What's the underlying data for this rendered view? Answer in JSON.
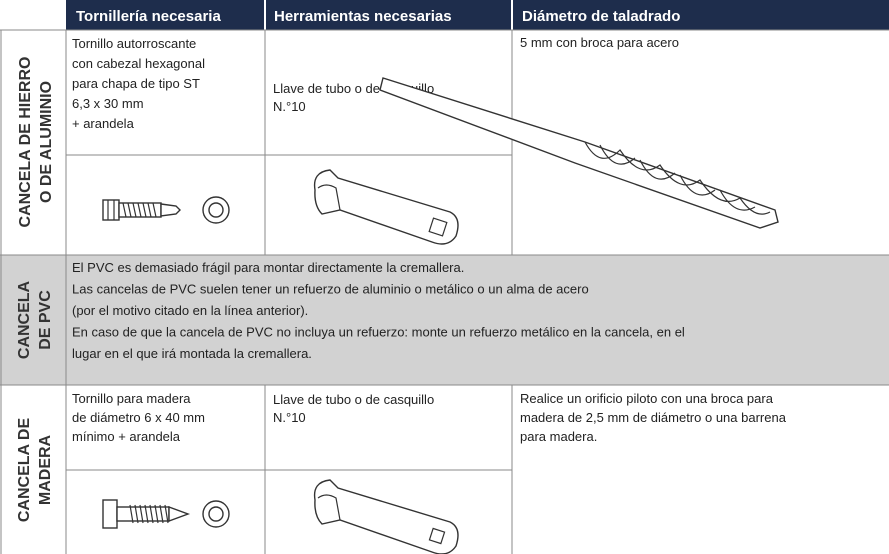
{
  "header": {
    "columns": [
      "Tornillería necesaria",
      "Herramientas necesarias",
      "Diámetro de taladrado"
    ]
  },
  "rows": [
    {
      "label": [
        "CANCELA DE HIERRO",
        "O DE ALUMINIO"
      ],
      "screws": [
        "Tornillo autorroscante",
        "con cabezal hexagonal",
        "para chapa de tipo ST",
        "6,3 x 30 mm",
        "+ arandela"
      ],
      "tools": [
        "Llave de tubo o de casquillo",
        "N.°10"
      ],
      "drilling": [
        "5 mm con broca para acero"
      ]
    },
    {
      "label": [
        "CANCELA",
        "DE PVC"
      ],
      "note": [
        "El PVC es demasiado frágil para montar directamente la cremallera.",
        "Las cancelas de PVC suelen tener un refuerzo de aluminio o metálico o un alma de acero",
        "(por el motivo citado en la línea anterior).",
        "En caso de que la cancela de PVC no incluya un refuerzo: monte un refuerzo metálico en la cancela, en el",
        "lugar en el que irá montada la cremallera."
      ]
    },
    {
      "label": [
        "CANCELA DE",
        "MADERA"
      ],
      "screws": [
        "Tornillo para madera",
        "de diámetro 6 x 40 mm",
        "mínimo + arandela"
      ],
      "tools": [
        "Llave de tubo o de casquillo",
        "N.°10"
      ],
      "drilling": [
        "Realice un orificio piloto con una broca para",
        "madera de 2,5 mm de diámetro o una barrena",
        "para madera."
      ]
    }
  ]
}
